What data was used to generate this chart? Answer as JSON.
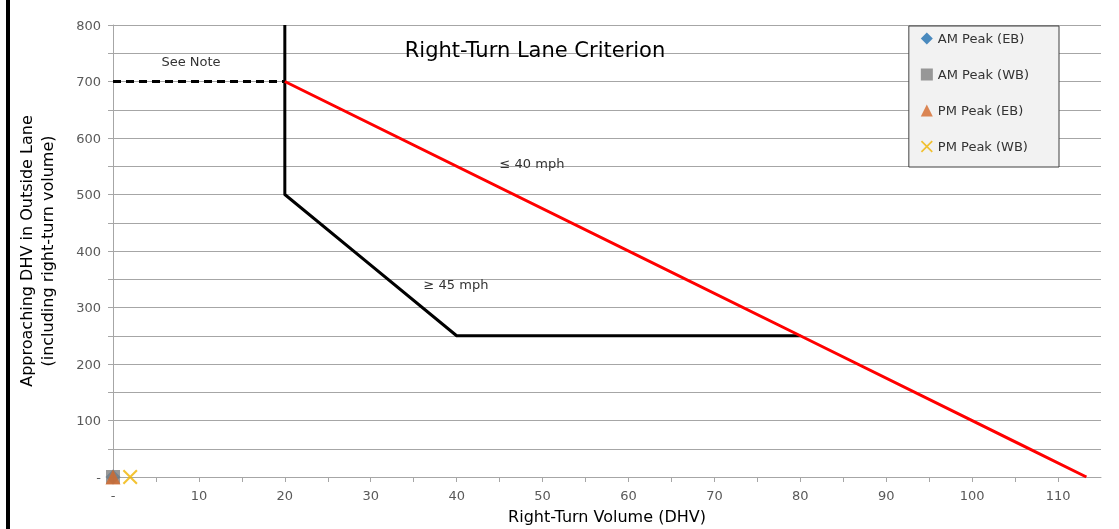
{
  "chart_data": {
    "type": "scatter",
    "title": "Right-Turn Lane Criterion",
    "xlabel": "Right-Turn Volume (DHV)",
    "ylabel": "Approaching DHV in Outside Lane\n(including right-turn volume)",
    "xlim": [
      0,
      115
    ],
    "ylim": [
      0,
      800
    ],
    "xticks": [
      {
        "value": 0,
        "label": "-"
      },
      {
        "value": 5,
        "label": null
      },
      10,
      {
        "value": 15,
        "label": null
      },
      20,
      {
        "value": 25,
        "label": null
      },
      30,
      {
        "value": 35,
        "label": null
      },
      40,
      {
        "value": 45,
        "label": null
      },
      50,
      {
        "value": 55,
        "label": null
      },
      60,
      {
        "value": 65,
        "label": null
      },
      70,
      {
        "value": 75,
        "label": null
      },
      80,
      {
        "value": 85,
        "label": null
      },
      90,
      {
        "value": 95,
        "label": null
      },
      100,
      {
        "value": 105,
        "label": null
      },
      110
    ],
    "yticks": [
      {
        "value": 0,
        "label": "-"
      },
      {
        "value": 50,
        "label": null
      },
      100,
      {
        "value": 150,
        "label": null
      },
      200,
      {
        "value": 250,
        "label": null
      },
      300,
      {
        "value": 350,
        "label": null
      },
      400,
      {
        "value": 450,
        "label": null
      },
      500,
      {
        "value": 550,
        "label": null
      },
      600,
      {
        "value": 650,
        "label": null
      },
      700,
      {
        "value": 750,
        "label": null
      },
      800
    ],
    "grid": "y",
    "legend": "top right",
    "series": [
      {
        "type": "line",
        "color": "#000000",
        "line_style": "solid",
        "marker": "none",
        "x": [
          20,
          20,
          40,
          80
        ],
        "values": [
          800,
          500,
          250,
          250
        ]
      },
      {
        "type": "line",
        "color": "#000000",
        "line_style": "dashed",
        "marker": "none",
        "x": [
          0,
          20
        ],
        "values": [
          700,
          700
        ]
      },
      {
        "type": "line",
        "color": "#ff0000",
        "line_style": "solid",
        "marker": "none",
        "x": [
          20,
          80,
          113.3
        ],
        "values": [
          700,
          250,
          0
        ]
      },
      {
        "name": "AM Peak (EB)",
        "color": "#1f6fb0",
        "marker": "diamond",
        "x": [
          0
        ],
        "values": [
          0
        ]
      },
      {
        "name": "AM Peak (WB)",
        "color": "#7f7f7f",
        "marker": "square",
        "x": [
          0
        ],
        "values": [
          0
        ]
      },
      {
        "name": "PM Peak (EB)",
        "color": "#d4692a",
        "marker": "triangle",
        "x": [
          0
        ],
        "values": [
          0
        ]
      },
      {
        "name": "PM Peak (WB)",
        "color": "#f0b400",
        "marker": "cross",
        "x": [
          2
        ],
        "values": [
          0
        ]
      }
    ],
    "annotations": [
      "See Note",
      "≤ 40 mph",
      "≥ 45 mph"
    ]
  }
}
